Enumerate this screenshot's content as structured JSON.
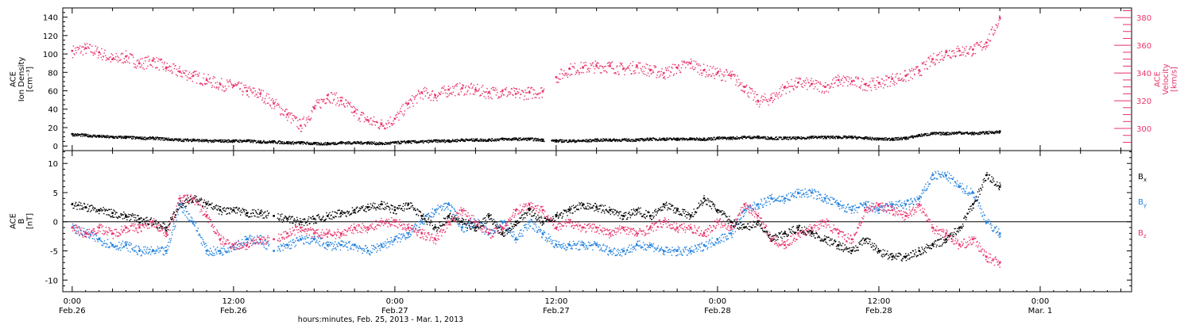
{
  "figure": {
    "xlabel": "hours:minutes, Feb. 25, 2013 - Mar.  1, 2013",
    "x_ticks": [
      {
        "t": 0,
        "time": "0:00",
        "date": "Feb.26"
      },
      {
        "t": 12,
        "time": "12:00",
        "date": "Feb.26"
      },
      {
        "t": 24,
        "time": "0:00",
        "date": "Feb.27"
      },
      {
        "t": 36,
        "time": "12:00",
        "date": "Feb.27"
      },
      {
        "t": 48,
        "time": "0:00",
        "date": "Feb.28"
      },
      {
        "t": 60,
        "time": "12:00",
        "date": "Feb.28"
      },
      {
        "t": 72,
        "time": "0:00",
        "date": "Mar. 1"
      }
    ],
    "colors": {
      "black": "#000000",
      "blue": "#1f7fdd",
      "pink": "#e8336a"
    }
  },
  "chart_data": [
    {
      "type": "scatter",
      "x_unit": "hours from 0:00 Feb. 26, 2013",
      "xlim": [
        -0.7,
        78.8
      ],
      "ylabel_lines": [
        "ACE",
        "Ion Density",
        "[cm⁻³]"
      ],
      "ylim": [
        -5,
        150
      ],
      "yticks": [
        0,
        20,
        40,
        60,
        80,
        100,
        120,
        140
      ],
      "y2label_lines": [
        "ACE",
        "Velocity",
        "[km/s]"
      ],
      "y2lim": [
        284,
        387
      ],
      "y2ticks": [
        300,
        320,
        340,
        360,
        380
      ],
      "series": [
        {
          "axis": "left",
          "color": "#000000",
          "x": [
            0,
            1,
            2,
            3,
            4,
            5,
            6,
            7,
            8,
            9,
            10,
            11,
            12,
            13,
            14,
            15,
            16,
            17,
            18,
            19,
            20,
            21,
            22,
            23,
            24,
            25,
            26,
            27,
            28,
            29,
            30,
            31,
            32,
            33,
            34,
            35,
            36,
            37,
            38,
            39,
            40,
            41,
            42,
            43,
            44,
            45,
            46,
            47,
            48,
            49,
            50,
            51,
            52,
            53,
            54,
            55,
            56,
            57,
            58,
            59,
            60,
            61,
            62,
            63,
            64,
            65,
            66,
            67,
            68,
            69
          ],
          "y": [
            13,
            12,
            11,
            10,
            10,
            9,
            9,
            8,
            7,
            7,
            6,
            6,
            6,
            6,
            5,
            5,
            4,
            4,
            3,
            3,
            4,
            4,
            4,
            3,
            4,
            5,
            5,
            6,
            6,
            7,
            7,
            7,
            8,
            8,
            8,
            7,
            6,
            6,
            6,
            7,
            7,
            7,
            7,
            8,
            8,
            8,
            8,
            8,
            9,
            9,
            10,
            10,
            9,
            9,
            9,
            10,
            10,
            10,
            10,
            9,
            8,
            8,
            9,
            12,
            14,
            14,
            15,
            14,
            15,
            16
          ]
        },
        {
          "axis": "right",
          "color": "#e8336a",
          "x": [
            0,
            1,
            2,
            3,
            4,
            5,
            6,
            7,
            8,
            9,
            10,
            11,
            12,
            13,
            14,
            15,
            16,
            17,
            18,
            19,
            20,
            21,
            22,
            23,
            24,
            25,
            26,
            27,
            28,
            29,
            30,
            31,
            32,
            33,
            34,
            35,
            36,
            37,
            38,
            39,
            40,
            41,
            42,
            43,
            44,
            45,
            46,
            47,
            48,
            49,
            50,
            51,
            52,
            53,
            54,
            55,
            56,
            57,
            58,
            59,
            60,
            61,
            62,
            63,
            64,
            65,
            66,
            67,
            68,
            69
          ],
          "y": [
            356,
            358,
            355,
            350,
            352,
            347,
            349,
            344,
            341,
            338,
            335,
            332,
            331,
            327,
            325,
            318,
            310,
            302,
            315,
            324,
            320,
            312,
            306,
            303,
            307,
            318,
            326,
            324,
            328,
            329,
            328,
            326,
            327,
            325,
            326,
            327,
            337,
            343,
            344,
            345,
            345,
            343,
            345,
            342,
            340,
            344,
            347,
            342,
            340,
            338,
            330,
            320,
            322,
            330,
            333,
            332,
            330,
            335,
            334,
            332,
            333,
            336,
            338,
            342,
            350,
            355,
            356,
            357,
            362,
            380
          ]
        }
      ]
    },
    {
      "type": "scatter",
      "x_unit": "hours from 0:00 Feb. 26, 2013",
      "xlim": [
        -0.7,
        78.8
      ],
      "ylabel_lines": [
        "ACE",
        "B",
        "[nT]"
      ],
      "ylim": [
        -12,
        12.2
      ],
      "yticks": [
        -10,
        -5,
        0,
        5,
        10
      ],
      "zero_line": true,
      "series": [
        {
          "name": "Bx",
          "label_base": "B",
          "label_sub": "x",
          "color": "#000000",
          "x": [
            0,
            1,
            2,
            3,
            4,
            5,
            6,
            7,
            8,
            9,
            10,
            11,
            12,
            13,
            14,
            15,
            16,
            17,
            18,
            19,
            20,
            21,
            22,
            23,
            24,
            25,
            26,
            27,
            28,
            29,
            30,
            31,
            32,
            33,
            34,
            35,
            36,
            37,
            38,
            39,
            40,
            41,
            42,
            43,
            44,
            45,
            46,
            47,
            48,
            49,
            50,
            51,
            52,
            53,
            54,
            55,
            56,
            57,
            58,
            59,
            60,
            61,
            62,
            63,
            64,
            65,
            66,
            67,
            68,
            69
          ],
          "y": [
            3,
            2.5,
            2,
            1.5,
            1,
            0.5,
            0,
            -1,
            3,
            4,
            3,
            2,
            2,
            1.5,
            1.5,
            1,
            0.5,
            0,
            0.5,
            1,
            1.5,
            2,
            2.5,
            3,
            2,
            3,
            1,
            -1,
            1,
            0,
            -1,
            1,
            -2,
            0,
            2,
            0,
            1,
            2,
            3,
            2.5,
            2,
            1,
            2,
            1,
            3,
            2,
            1,
            4,
            2,
            0,
            -1,
            0,
            -3,
            -2,
            -1,
            -2,
            -3,
            -4,
            -5,
            -3,
            -5,
            -6,
            -6,
            -5,
            -4,
            -3,
            -1,
            3,
            8,
            6
          ]
        },
        {
          "name": "By",
          "label_base": "B",
          "label_sub": "y",
          "color": "#1f7fdd",
          "x": [
            0,
            1,
            2,
            3,
            4,
            5,
            6,
            7,
            8,
            9,
            10,
            11,
            12,
            13,
            14,
            15,
            16,
            17,
            18,
            19,
            20,
            21,
            22,
            23,
            24,
            25,
            26,
            27,
            28,
            29,
            30,
            31,
            32,
            33,
            34,
            35,
            36,
            37,
            38,
            39,
            40,
            41,
            42,
            43,
            44,
            45,
            46,
            47,
            48,
            49,
            50,
            51,
            52,
            53,
            54,
            55,
            56,
            57,
            58,
            59,
            60,
            61,
            62,
            63,
            64,
            65,
            66,
            67,
            68,
            69
          ],
          "y": [
            -1,
            -2,
            -3,
            -4,
            -4,
            -5,
            -5,
            -5,
            3,
            0,
            -5,
            -5,
            -4,
            -3,
            -3,
            -5,
            -4,
            -3,
            -3,
            -4,
            -4,
            -4,
            -5,
            -4,
            -3,
            -2,
            0,
            2,
            3,
            -1,
            0,
            -2,
            0,
            -3,
            0,
            -2,
            -4,
            -4,
            -4,
            -4,
            -5,
            -5,
            -4,
            -4,
            -5,
            -5,
            -5,
            -4,
            -3,
            -2,
            2,
            3,
            4,
            4,
            5,
            5,
            4,
            3,
            2,
            3,
            2,
            3,
            3,
            4,
            8,
            8,
            6,
            5,
            0,
            -2
          ]
        },
        {
          "name": "Bz",
          "label_base": "B",
          "label_sub": "z",
          "color": "#e8336a",
          "x": [
            0,
            1,
            2,
            3,
            4,
            5,
            6,
            7,
            8,
            9,
            10,
            11,
            12,
            13,
            14,
            15,
            16,
            17,
            18,
            19,
            20,
            21,
            22,
            23,
            24,
            25,
            26,
            27,
            28,
            29,
            30,
            31,
            32,
            33,
            34,
            35,
            36,
            37,
            38,
            39,
            40,
            41,
            42,
            43,
            44,
            45,
            46,
            47,
            48,
            49,
            50,
            51,
            52,
            53,
            54,
            55,
            56,
            57,
            58,
            59,
            60,
            61,
            62,
            63,
            64,
            65,
            66,
            67,
            68,
            69
          ],
          "y": [
            -1,
            -2,
            -1,
            -2,
            -1,
            -1,
            0,
            -2,
            4,
            4,
            1,
            -3,
            -4,
            -4,
            -3,
            -3,
            -2,
            -1,
            -2,
            -2,
            -2,
            -1,
            -1,
            0,
            0,
            -1,
            -2,
            -3,
            0,
            2,
            0,
            -2,
            -1,
            2,
            3,
            2,
            -1,
            0,
            -1,
            -1,
            -2,
            -1,
            -2,
            -1,
            0,
            -1,
            -1,
            -2,
            0,
            -1,
            3,
            1,
            -3,
            -4,
            -2,
            -1,
            0,
            -2,
            -3,
            2,
            3,
            2,
            1,
            3,
            -1,
            -2,
            -4,
            -3,
            -6,
            -7
          ]
        }
      ]
    }
  ]
}
